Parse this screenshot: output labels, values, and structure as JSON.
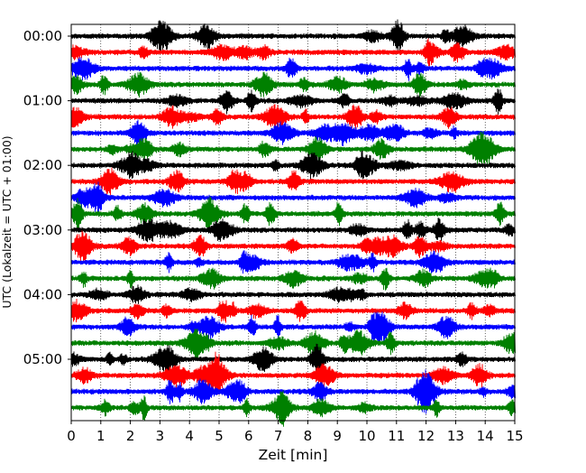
{
  "chart_data": {
    "type": "line",
    "subtype": "helicorder",
    "xlabel": "Zeit  [min]",
    "ylabel": "UTC (Lokalzeit = UTC + 01:00)",
    "xlim": [
      0,
      15
    ],
    "x_ticks": [
      "0",
      "1",
      "2",
      "3",
      "4",
      "5",
      "6",
      "7",
      "8",
      "9",
      "10",
      "11",
      "12",
      "13",
      "14",
      "15"
    ],
    "y_tick_labels": [
      "00:00",
      "01:00",
      "02:00",
      "03:00",
      "04:00",
      "05:00"
    ],
    "trace_minutes": 15,
    "trace_count": 24,
    "trace_colors": [
      "#000000",
      "#ff0000",
      "#0000ff",
      "#008000"
    ],
    "vertical_grid": "dotted, every 1 min",
    "horizontal_grid": false,
    "legend": "none"
  }
}
